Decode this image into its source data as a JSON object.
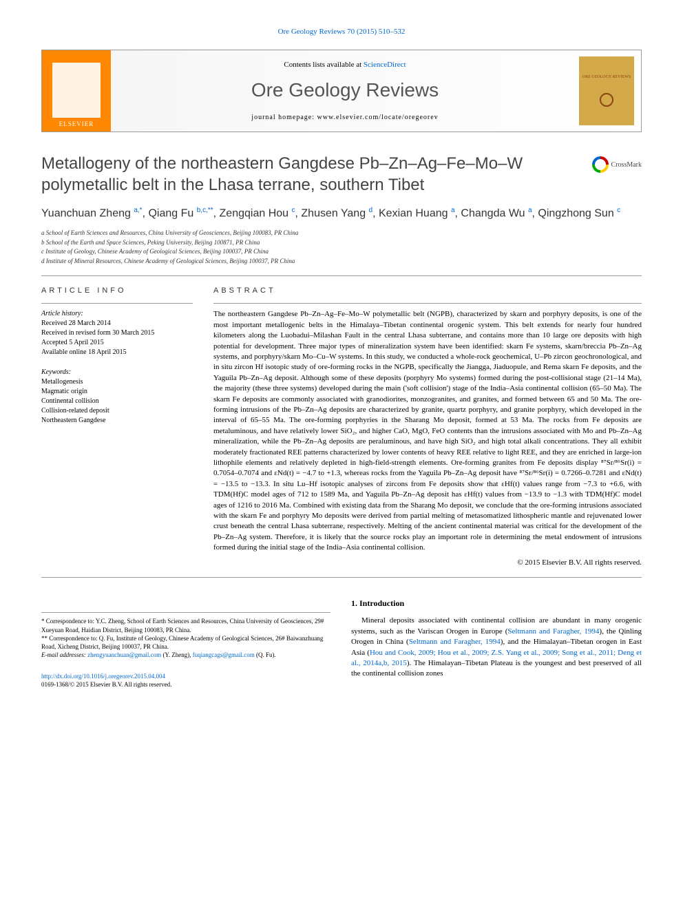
{
  "top_citation": {
    "prefix": "",
    "link_text": "Ore Geology Reviews 70 (2015) 510–532"
  },
  "header": {
    "contents_prefix": "Contents lists available at ",
    "contents_link": "ScienceDirect",
    "journal_name": "Ore Geology Reviews",
    "homepage_label": "journal homepage: ",
    "homepage_url": "www.elsevier.com/locate/oregeorev",
    "publisher": "ELSEVIER"
  },
  "crossmark_label": "CrossMark",
  "title": "Metallogeny of the northeastern Gangdese Pb–Zn–Ag–Fe–Mo–W polymetallic belt in the Lhasa terrane, southern Tibet",
  "authors_html": "Yuanchuan Zheng <sup>a,*</sup>, Qiang Fu <sup>b,c,**</sup>, Zengqian Hou <sup>c</sup>, Zhusen Yang <sup>d</sup>, Kexian Huang <sup>a</sup>, Changda Wu <sup>a</sup>, Qingzhong Sun <sup>c</sup>",
  "affiliations": [
    "a School of Earth Sciences and Resources, China University of Geosciences, Beijing 100083, PR China",
    "b School of the Earth and Space Sciences, Peking University, Beijing 100871, PR China",
    "c Institute of Geology, Chinese Academy of Geological Sciences, Beijing 100037, PR China",
    "d Institute of Mineral Resources, Chinese Academy of Geological Sciences, Beijing 100037, PR China"
  ],
  "article_info": {
    "heading": "article info",
    "history_label": "Article history:",
    "history": [
      "Received 28 March 2014",
      "Received in revised form 30 March 2015",
      "Accepted 5 April 2015",
      "Available online 18 April 2015"
    ],
    "keywords_label": "Keywords:",
    "keywords": [
      "Metallogenesis",
      "Magmatic origin",
      "Continental collision",
      "Collision-related deposit",
      "Northeastern Gangdese"
    ]
  },
  "abstract": {
    "heading": "abstract",
    "text": "The northeastern Gangdese Pb–Zn–Ag–Fe–Mo–W polymetallic belt (NGPB), characterized by skarn and porphyry deposits, is one of the most important metallogenic belts in the Himalaya–Tibetan continental orogenic system. This belt extends for nearly four hundred kilometers along the Luobadui–Milashan Fault in the central Lhasa subterrane, and contains more than 10 large ore deposits with high potential for development. Three major types of mineralization system have been identified: skarn Fe systems, skarn/breccia Pb–Zn–Ag systems, and porphyry/skarn Mo–Cu–W systems. In this study, we conducted a whole-rock geochemical, U–Pb zircon geochronological, and in situ zircon Hf isotopic study of ore-forming rocks in the NGPB, specifically the Jiangga, Jiaduopule, and Rema skarn Fe deposits, and the Yaguila Pb–Zn–Ag deposit. Although some of these deposits (porphyry Mo systems) formed during the post-collisional stage (21–14 Ma), the majority (these three systems) developed during the main ('soft collision') stage of the India–Asia continental collision (65–50 Ma). The skarn Fe deposits are commonly associated with granodiorites, monzogranites, and granites, and formed between 65 and 50 Ma. The ore-forming intrusions of the Pb–Zn–Ag deposits are characterized by granite, quartz porphyry, and granite porphyry, which developed in the interval of 65–55 Ma. The ore-forming porphyries in the Sharang Mo deposit, formed at 53 Ma. The rocks from Fe deposits are metaluminous, and have relatively lower SiO₂, and higher CaO, MgO, FeO contents than the intrusions associated with Mo and Pb–Zn–Ag mineralization, while the Pb–Zn–Ag deposits are peraluminous, and have high SiO₂ and high total alkali concentrations. They all exhibit moderately fractionated REE patterns characterized by lower contents of heavy REE relative to light REE, and they are enriched in large-ion lithophile elements and relatively depleted in high-field-strength elements. Ore-forming granites from Fe deposits display ⁸⁷Sr/⁸⁶Sr(i) = 0.7054–0.7074 and εNd(t) = −4.7 to +1.3, whereas rocks from the Yaguila Pb–Zn–Ag deposit have ⁸⁷Sr/⁸⁶Sr(i) = 0.7266–0.7281 and εNd(t) = −13.5 to −13.3. In situ Lu–Hf isotopic analyses of zircons from Fe deposits show that εHf(t) values range from −7.3 to +6.6, with TDM(Hf)C model ages of 712 to 1589 Ma, and Yaguila Pb–Zn–Ag deposit has εHf(t) values from −13.9 to −1.3 with TDM(Hf)C model ages of 1216 to 2016 Ma. Combined with existing data from the Sharang Mo deposit, we conclude that the ore-forming intrusions associated with the skarn Fe and porphyry Mo deposits were derived from partial melting of metasomatized lithospheric mantle and rejuvenated lower crust beneath the central Lhasa subterrane, respectively. Melting of the ancient continental material was critical for the development of the Pb–Zn–Ag system. Therefore, it is likely that the source rocks play an important role in determining the metal endowment of intrusions formed during the initial stage of the India–Asia continental collision.",
    "copyright": "© 2015 Elsevier B.V. All rights reserved."
  },
  "introduction": {
    "heading": "1. Introduction",
    "text_html": "Mineral deposits associated with continental collision are abundant in many orogenic systems, such as the Variscan Orogen in Europe (<a href='#'>Seltmann and Faragher, 1994</a>), the Qinling Orogen in China (<a href='#'>Seltmann and Faragher, 1994</a>), and the Himalayan–Tibetan orogen in East Asia (<a href='#'>Hou and Cook, 2009; Hou et al., 2009; Z.S. Yang et al., 2009; Song et al., 2011; Deng et al., 2014a,b, 2015</a>). The Himalayan–Tibetan Plateau is the youngest and best preserved of all the continental collision zones"
  },
  "footnotes": {
    "corr1": "* Correspondence to: Y.C. Zheng, School of Earth Sciences and Resources, China University of Geosciences, 29# Xueyuan Road, Haidian District, Beijing 100083, PR China.",
    "corr2": "** Correspondence to: Q. Fu, Institute of Geology, Chinese Academy of Geological Sciences, 26# Baiwanzhuang Road, Xicheng District, Beijing 100037, PR China.",
    "email_label": "E-mail addresses: ",
    "email1": "zhengyuanchuan@gmail.com",
    "email1_name": " (Y. Zheng), ",
    "email2": "fuqiangcags@gmail.com",
    "email2_name": " (Q. Fu)."
  },
  "footer": {
    "doi": "http://dx.doi.org/10.1016/j.oregeorev.2015.04.004",
    "issn": "0169-1368/© 2015 Elsevier B.V. All rights reserved."
  }
}
